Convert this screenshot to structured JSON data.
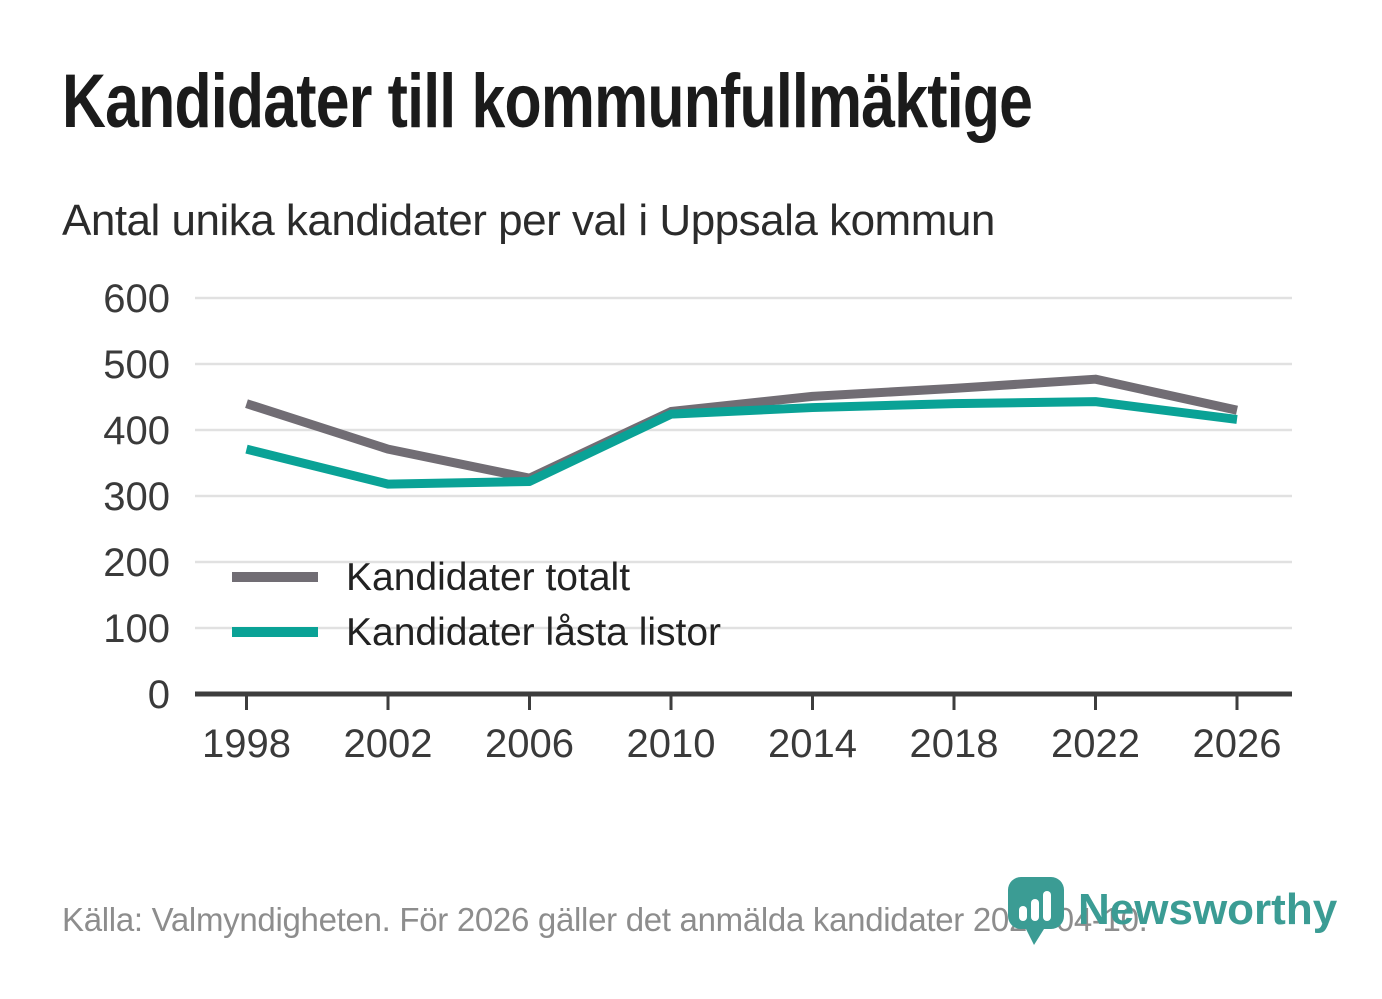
{
  "header": {
    "title": "Kandidater till kommunfullmäktige",
    "subtitle": "Antal unika kandidater per val i Uppsala kommun"
  },
  "chart_data": {
    "type": "line",
    "categories": [
      "1998",
      "2002",
      "2006",
      "2010",
      "2014",
      "2018",
      "2022",
      "2026"
    ],
    "series": [
      {
        "name": "Kandidater totalt",
        "color": "#716d74",
        "values": [
          440,
          371,
          327,
          428,
          451,
          463,
          477,
          430
        ]
      },
      {
        "name": "Kandidater låsta listor",
        "color": "#0aa296",
        "values": [
          371,
          318,
          322,
          424,
          434,
          440,
          443,
          416
        ]
      }
    ],
    "title": "Kandidater till kommunfullmäktige",
    "subtitle": "Antal unika kandidater per val i Uppsala kommun",
    "xlabel": "",
    "ylabel": "",
    "ylim": [
      0,
      600
    ],
    "yticks": [
      0,
      100,
      200,
      300,
      400,
      500,
      600
    ],
    "grid": true,
    "legend_position": "inside-bottom-left"
  },
  "footer": {
    "source": "Källa: Valmyndigheten. För 2026 gäller det anmälda kandidater 2026-04-10.",
    "logo_text": "Newsworthy"
  },
  "colors": {
    "series_total": "#716d74",
    "series_locked": "#0aa296",
    "logo_teal": "#3b9c94"
  }
}
